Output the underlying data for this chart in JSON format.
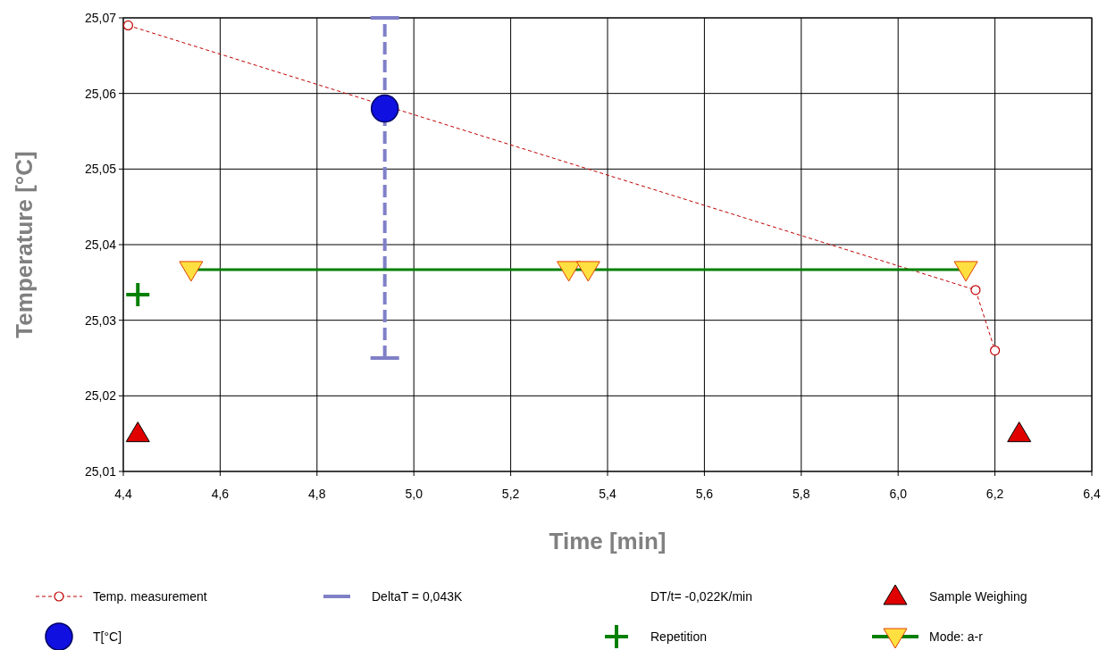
{
  "chart_data": {
    "type": "scatter",
    "xlabel": "Time [min]",
    "ylabel": "Temperature [°C]",
    "xlim": [
      4.4,
      6.4
    ],
    "ylim": [
      25.01,
      25.07
    ],
    "xticks": [
      {
        "value": 4.4,
        "label": "4,4"
      },
      {
        "value": 4.6,
        "label": "4,6"
      },
      {
        "value": 4.8,
        "label": "4,8"
      },
      {
        "value": 5.0,
        "label": "5,0"
      },
      {
        "value": 5.2,
        "label": "5,2"
      },
      {
        "value": 5.4,
        "label": "5,4"
      },
      {
        "value": 5.6,
        "label": "5,6"
      },
      {
        "value": 5.8,
        "label": "5,8"
      },
      {
        "value": 6.0,
        "label": "6,0"
      },
      {
        "value": 6.2,
        "label": "6,2"
      },
      {
        "value": 6.4,
        "label": "6,4"
      }
    ],
    "yticks": [
      {
        "value": 25.01,
        "label": "25,01"
      },
      {
        "value": 25.02,
        "label": "25,02"
      },
      {
        "value": 25.03,
        "label": "25,03"
      },
      {
        "value": 25.04,
        "label": "25,04"
      },
      {
        "value": 25.05,
        "label": "25,05"
      },
      {
        "value": 25.06,
        "label": "25,06"
      },
      {
        "value": 25.07,
        "label": "25,07"
      }
    ],
    "grid": true,
    "legend": "bottom",
    "annotations": [
      "DeltaT = 0,043K",
      "DT/t= -0,022K/min"
    ],
    "series": [
      {
        "name": "Temp. measurement",
        "type": "line",
        "color": "#c00000",
        "marker": "circle",
        "line_style": "dashed",
        "x": [
          4.41,
          6.16,
          6.2
        ],
        "values": [
          25.069,
          25.034,
          25.026
        ]
      },
      {
        "name": "Sample Weighing",
        "color": "#e00000",
        "marker": "triangle",
        "x": [
          4.43,
          6.25
        ],
        "values": [
          25.015,
          25.015
        ]
      },
      {
        "name": "T[°C]",
        "color": "#1010e0",
        "marker": "circle",
        "x": [
          4.94
        ],
        "values": [
          25.058
        ],
        "errors": [
          [
            25.025,
            25.07
          ]
        ]
      },
      {
        "name": "Repetition",
        "color": "#008000",
        "marker": "cross",
        "x": [
          4.43
        ],
        "values": [
          25.0334
        ]
      },
      {
        "name": "Mode: a-r",
        "type": "line",
        "color": "#008000",
        "marker": "triangle-down",
        "line_style": "solid",
        "x": [
          4.54,
          5.32,
          5.36,
          6.14
        ],
        "values": [
          25.0367,
          25.0367,
          25.0367,
          25.0367
        ]
      }
    ]
  }
}
